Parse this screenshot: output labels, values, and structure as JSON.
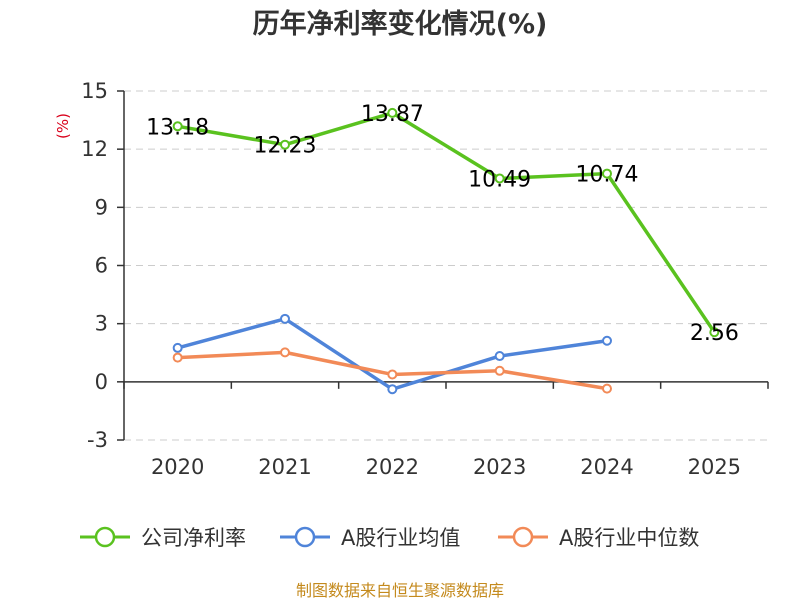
{
  "chart_data": {
    "type": "line",
    "title": "历年净利率变化情况(%)",
    "unit_label": "(%)",
    "categories": [
      "2020",
      "2021",
      "2022",
      "2023",
      "2024",
      "2025"
    ],
    "ylim": [
      -3,
      15
    ],
    "yticks": [
      "15",
      "12",
      "9",
      "6",
      "3",
      "0",
      "-3"
    ],
    "grid": true,
    "legend_position": "bottom",
    "series": [
      {
        "name": "公司净利率",
        "color": "#5ac21f",
        "show_labels": true,
        "values": [
          13.18,
          12.23,
          13.87,
          10.49,
          10.74,
          2.56
        ],
        "labels": [
          "13.18",
          "12.23",
          "13.87",
          "10.49",
          "10.74",
          "2.56"
        ]
      },
      {
        "name": "A股行业均值",
        "color": "#4f84d9",
        "show_labels": false,
        "values": [
          1.75,
          3.25,
          -0.38,
          1.33,
          2.12,
          null
        ]
      },
      {
        "name": "A股行业中位数",
        "color": "#f28a57",
        "show_labels": false,
        "values": [
          1.25,
          1.52,
          0.38,
          0.57,
          -0.35,
          null
        ]
      }
    ]
  },
  "source": "制图数据来自恒生聚源数据库"
}
